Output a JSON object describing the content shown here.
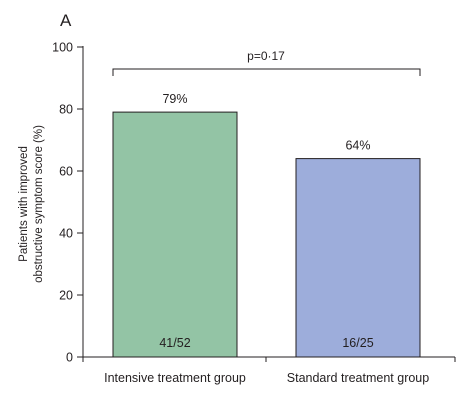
{
  "panel_label": "A",
  "chart_data": {
    "type": "bar",
    "categories": [
      "Intensive treatment group",
      "Standard treatment group"
    ],
    "values": [
      79,
      64
    ],
    "data_labels": [
      "79%",
      "64%"
    ],
    "count_labels": [
      "41/52",
      "16/25"
    ],
    "colors": [
      "#93c4a5",
      "#9daddb"
    ],
    "ylabel_lines": [
      "Patients with improved",
      "obstructive symptom score (%)"
    ],
    "xlabel": "",
    "ylim": [
      0,
      100
    ],
    "yticks": [
      0,
      20,
      40,
      60,
      80,
      100
    ],
    "annotation": "p=0·17",
    "grid": false,
    "legend": "none"
  }
}
